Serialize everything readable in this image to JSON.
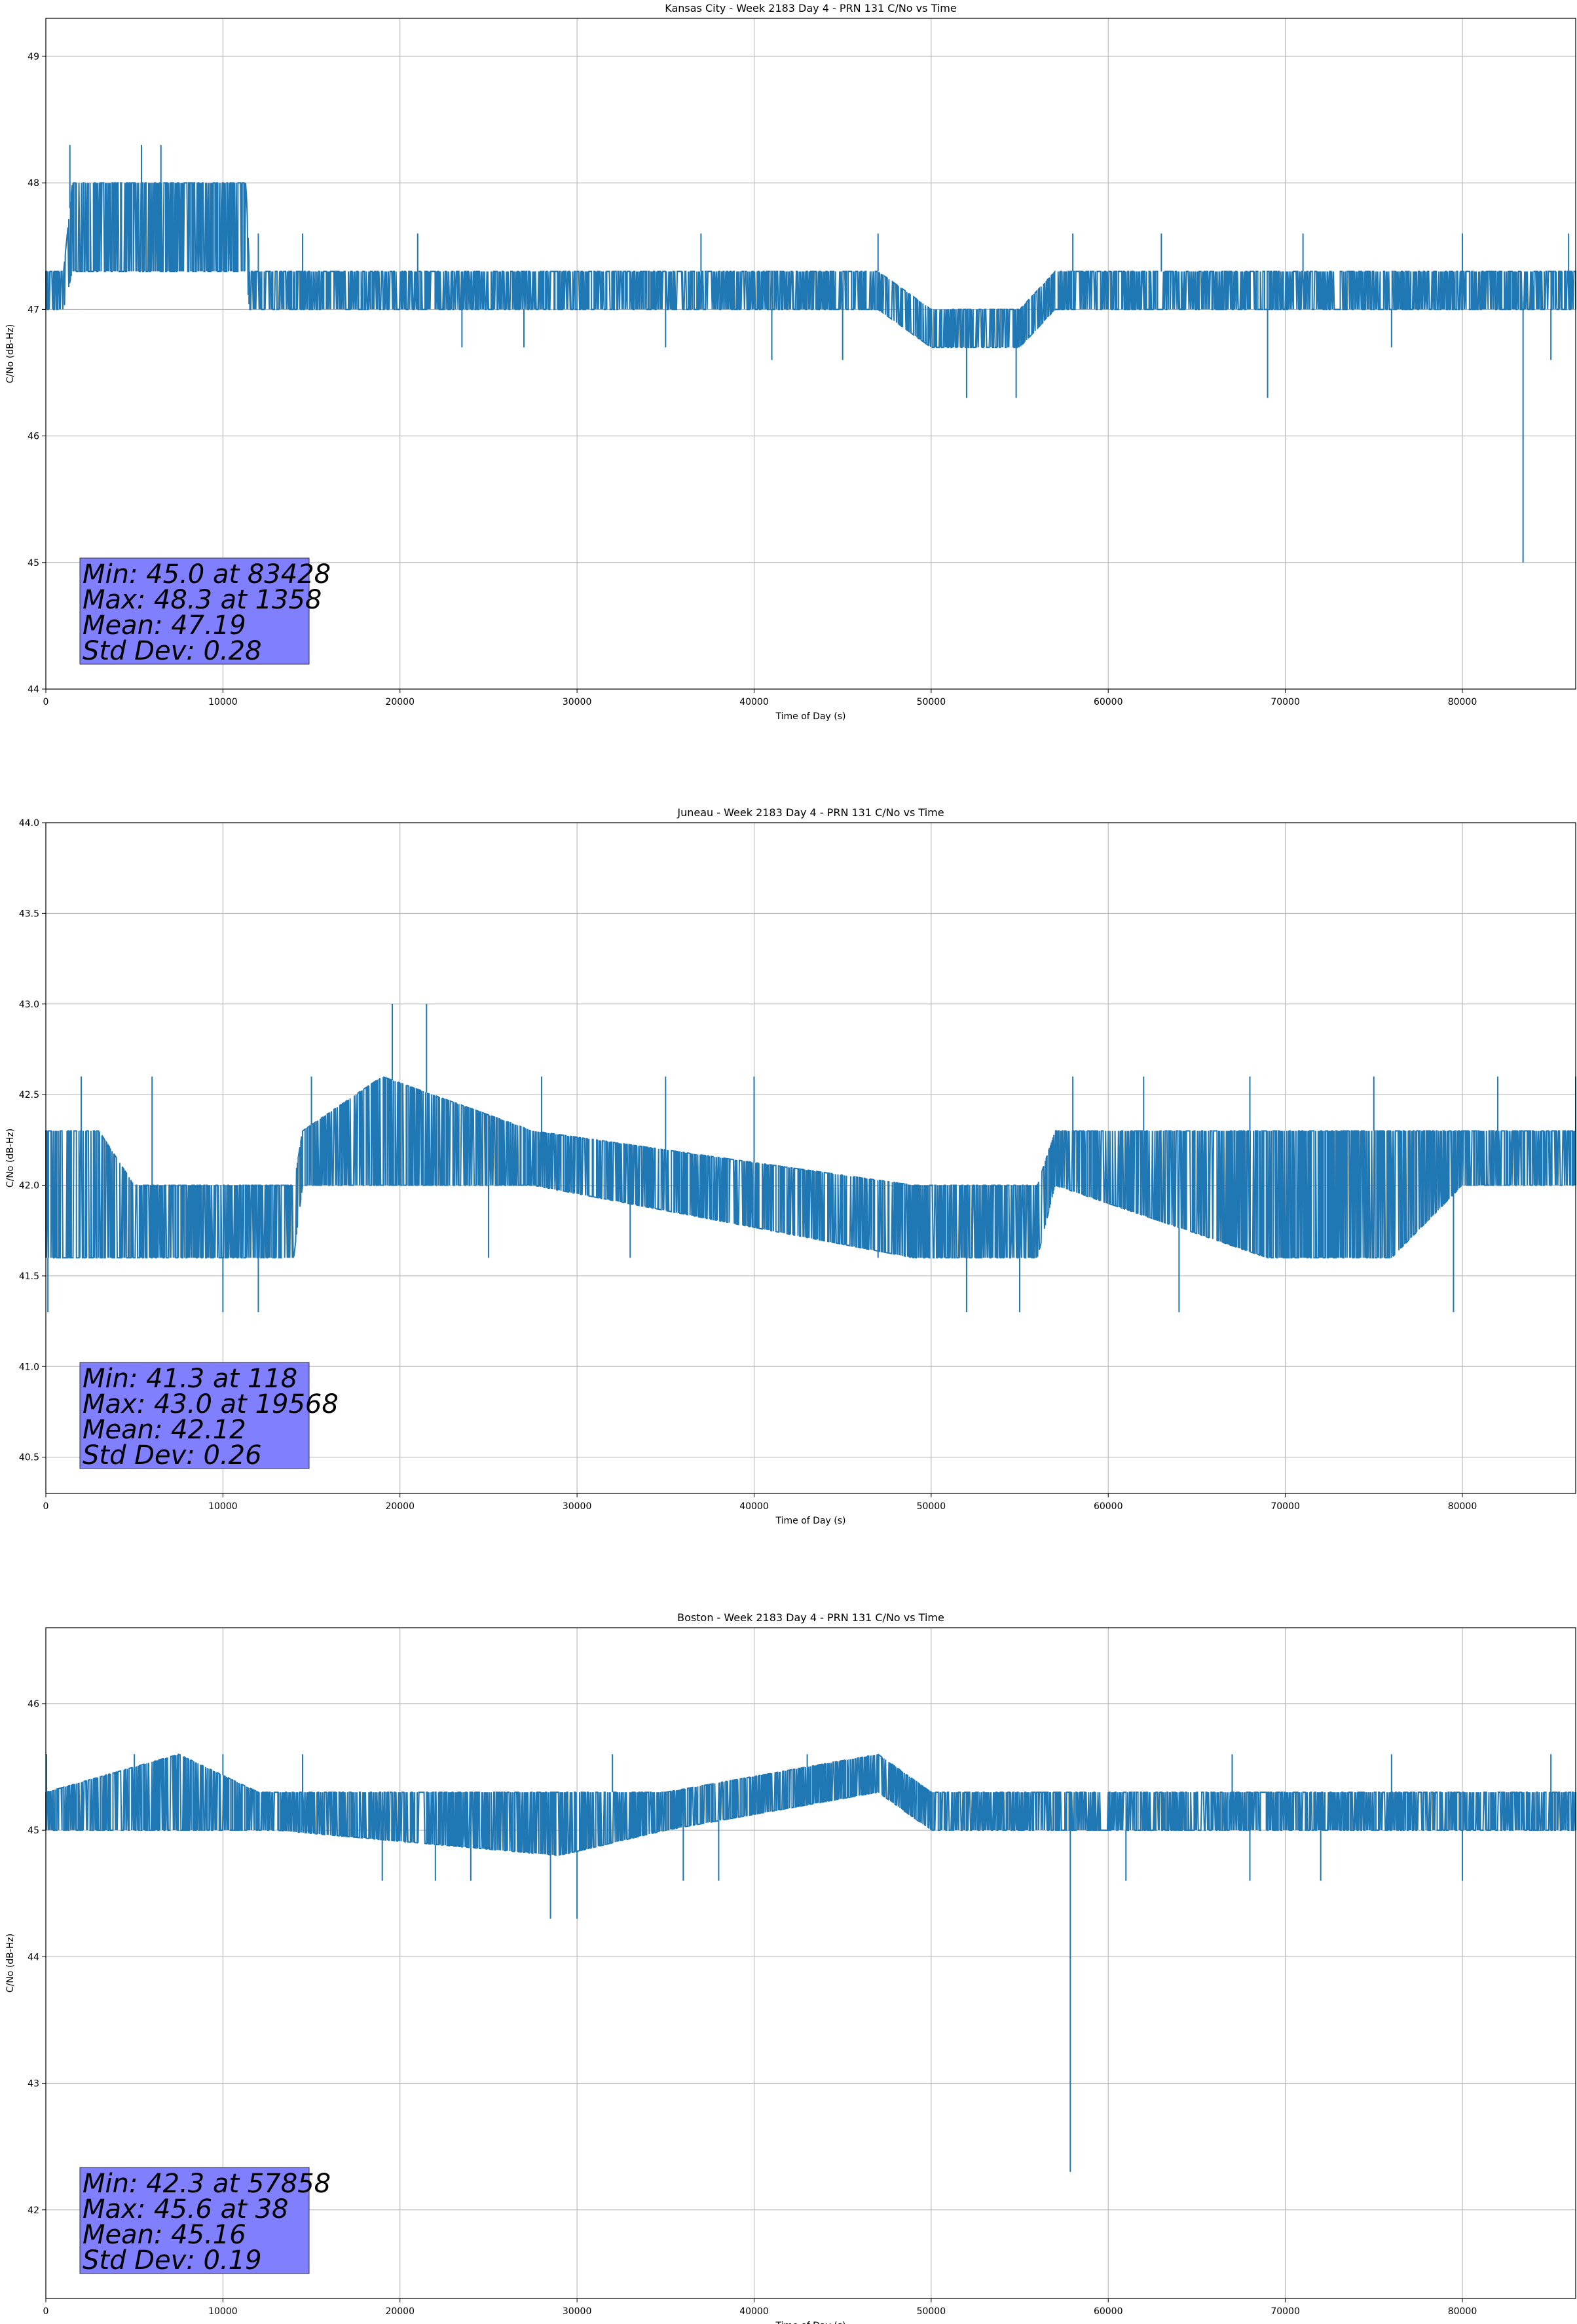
{
  "chart_data": [
    {
      "type": "line",
      "title": "Kansas City - Week 2183 Day 4 - PRN 131 C/No vs Time",
      "xlabel": "Time of Day (s)",
      "ylabel": "C/No (dB-Hz)",
      "xlim": [
        0,
        86400
      ],
      "ylim": [
        44,
        49.3
      ],
      "xticks": [
        0,
        10000,
        20000,
        30000,
        40000,
        50000,
        60000,
        70000,
        80000
      ],
      "yticks": [
        44,
        45,
        46,
        47,
        48,
        49
      ],
      "grid": true,
      "line_color": "#1f77b4",
      "stats": [
        "Min: 45.0 at 83428",
        "Max: 48.3 at 1358",
        "Mean: 47.19",
        "Std Dev: 0.28"
      ],
      "stats_box_color": "#8080ff",
      "series": [
        {
          "band_x": [
            0,
            1000,
            1500,
            11300,
            11500,
            15000,
            47000,
            50000,
            55000,
            57000,
            86400
          ],
          "band_low": [
            47.0,
            47.0,
            47.3,
            47.3,
            47.0,
            47.0,
            47.0,
            46.7,
            46.7,
            47.0,
            47.0
          ],
          "band_high": [
            47.3,
            47.3,
            48.0,
            48.0,
            47.3,
            47.3,
            47.3,
            47.0,
            47.0,
            47.3,
            47.3
          ],
          "samples": [
            [
              0,
              47.0
            ],
            [
              1358,
              48.3
            ],
            [
              5400,
              48.3
            ],
            [
              6500,
              48.3
            ],
            [
              6000,
              47.6
            ],
            [
              12000,
              47.6
            ],
            [
              14500,
              47.6
            ],
            [
              21000,
              47.6
            ],
            [
              23500,
              46.7
            ],
            [
              27000,
              46.7
            ],
            [
              35000,
              46.7
            ],
            [
              37000,
              47.6
            ],
            [
              41000,
              46.6
            ],
            [
              45000,
              46.6
            ],
            [
              47000,
              47.6
            ],
            [
              52000,
              46.3
            ],
            [
              54800,
              46.3
            ],
            [
              58000,
              47.6
            ],
            [
              63000,
              47.6
            ],
            [
              69000,
              46.3
            ],
            [
              71000,
              47.6
            ],
            [
              76000,
              46.7
            ],
            [
              80000,
              47.6
            ],
            [
              83428,
              45.0
            ],
            [
              85000,
              46.6
            ],
            [
              86000,
              47.6
            ],
            [
              86400,
              47.0
            ]
          ]
        }
      ]
    },
    {
      "type": "line",
      "title": "Juneau - Week 2183 Day 4 - PRN 131 C/No vs Time",
      "xlabel": "Time of Day (s)",
      "ylabel": "C/No (dB-Hz)",
      "xlim": [
        0,
        86400
      ],
      "ylim": [
        40.3,
        44.0
      ],
      "xticks": [
        0,
        10000,
        20000,
        30000,
        40000,
        50000,
        60000,
        70000,
        80000
      ],
      "yticks": [
        40.5,
        41.0,
        41.5,
        42.0,
        42.5,
        43.0,
        43.5,
        44.0
      ],
      "grid": true,
      "line_color": "#1f77b4",
      "stats": [
        "Min: 41.3 at 118",
        "Max: 43.0 at 19568",
        "Mean: 42.12",
        "Std Dev: 0.26"
      ],
      "stats_box_color": "#8080ff",
      "series": [
        {
          "band_x": [
            0,
            3000,
            5000,
            14000,
            14500,
            19000,
            27500,
            49000,
            56000,
            57000,
            69000,
            76000,
            80000,
            81000,
            86400
          ],
          "band_low": [
            41.6,
            41.6,
            41.6,
            41.6,
            42.0,
            42.0,
            42.0,
            41.6,
            41.6,
            42.0,
            41.6,
            41.6,
            42.0,
            42.0,
            42.0
          ],
          "band_high": [
            42.3,
            42.3,
            42.0,
            42.0,
            42.3,
            42.6,
            42.3,
            42.0,
            42.0,
            42.3,
            42.3,
            42.3,
            42.3,
            42.3,
            42.3
          ],
          "samples": [
            [
              118,
              41.3
            ],
            [
              2000,
              42.6
            ],
            [
              6000,
              42.6
            ],
            [
              10000,
              41.3
            ],
            [
              12000,
              41.3
            ],
            [
              15000,
              42.6
            ],
            [
              19568,
              43.0
            ],
            [
              21500,
              43.0
            ],
            [
              25000,
              41.6
            ],
            [
              28000,
              42.6
            ],
            [
              33000,
              41.6
            ],
            [
              35000,
              42.6
            ],
            [
              40000,
              42.6
            ],
            [
              47000,
              41.6
            ],
            [
              52000,
              41.3
            ],
            [
              55000,
              41.3
            ],
            [
              58000,
              42.6
            ],
            [
              62000,
              42.6
            ],
            [
              64000,
              41.3
            ],
            [
              68000,
              42.6
            ],
            [
              75000,
              42.6
            ],
            [
              79500,
              41.3
            ],
            [
              82000,
              42.6
            ],
            [
              86400,
              42.6
            ]
          ]
        }
      ]
    },
    {
      "type": "line",
      "title": "Boston - Week 2183 Day 4 - PRN 131 C/No vs Time",
      "xlabel": "Time of Day (s)",
      "ylabel": "C/No (dB-Hz)",
      "xlim": [
        0,
        86400
      ],
      "ylim": [
        41.3,
        46.6
      ],
      "xticks": [
        0,
        10000,
        20000,
        30000,
        40000,
        50000,
        60000,
        70000,
        80000
      ],
      "yticks": [
        42,
        43,
        44,
        45,
        46
      ],
      "grid": true,
      "line_color": "#1f77b4",
      "stats": [
        "Min: 42.3 at 57858",
        "Max: 45.6 at 38",
        "Mean: 45.16",
        "Std Dev: 0.19"
      ],
      "stats_box_color": "#8080ff",
      "series": [
        {
          "band_x": [
            0,
            7500,
            12000,
            13000,
            29000,
            35000,
            47000,
            50000,
            86400
          ],
          "band_low": [
            45.0,
            45.0,
            45.0,
            45.0,
            44.8,
            45.0,
            45.3,
            45.0,
            45.0
          ],
          "band_high": [
            45.3,
            45.6,
            45.3,
            45.3,
            45.3,
            45.3,
            45.6,
            45.3,
            45.3
          ],
          "samples": [
            [
              38,
              45.6
            ],
            [
              5000,
              45.6
            ],
            [
              10000,
              45.6
            ],
            [
              14500,
              45.6
            ],
            [
              19000,
              44.6
            ],
            [
              22000,
              44.6
            ],
            [
              24000,
              44.6
            ],
            [
              28500,
              44.3
            ],
            [
              30000,
              44.3
            ],
            [
              32000,
              45.6
            ],
            [
              36000,
              44.6
            ],
            [
              38000,
              44.6
            ],
            [
              43000,
              45.6
            ],
            [
              57858,
              42.3
            ],
            [
              61000,
              44.6
            ],
            [
              67000,
              45.6
            ],
            [
              68000,
              44.6
            ],
            [
              72000,
              44.6
            ],
            [
              76000,
              45.6
            ],
            [
              80000,
              44.6
            ],
            [
              85000,
              45.6
            ],
            [
              86400,
              45.0
            ]
          ]
        }
      ]
    }
  ]
}
